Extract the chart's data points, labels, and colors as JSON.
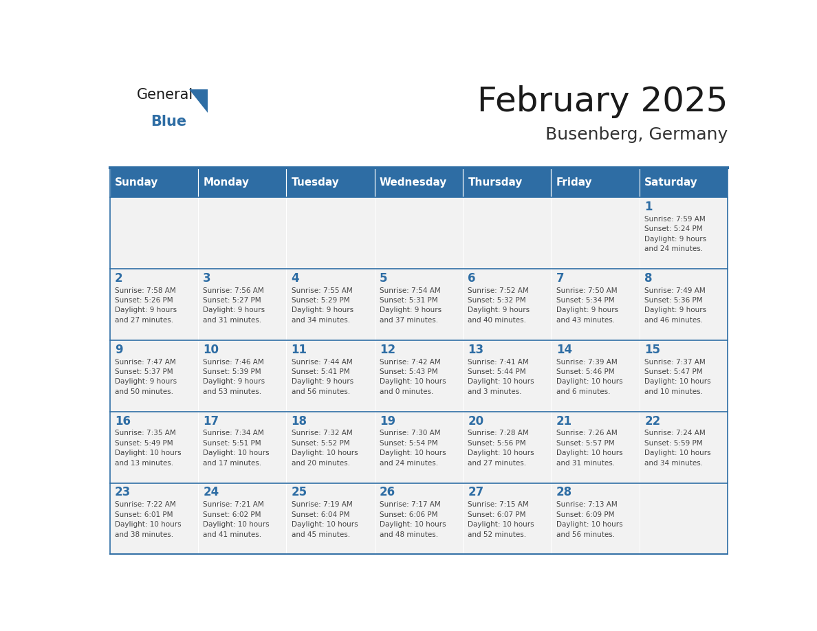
{
  "title": "February 2025",
  "subtitle": "Busenberg, Germany",
  "header_bg": "#2E6DA4",
  "header_text": "#FFFFFF",
  "cell_bg": "#F2F2F2",
  "day_number_color": "#2E6DA4",
  "info_text_color": "#444444",
  "logo_general_color": "#1a1a1a",
  "logo_blue_color": "#2E6DA4",
  "logo_triangle_color": "#2E6DA4",
  "days_of_week": [
    "Sunday",
    "Monday",
    "Tuesday",
    "Wednesday",
    "Thursday",
    "Friday",
    "Saturday"
  ],
  "calendar": [
    [
      {
        "day": null,
        "info": ""
      },
      {
        "day": null,
        "info": ""
      },
      {
        "day": null,
        "info": ""
      },
      {
        "day": null,
        "info": ""
      },
      {
        "day": null,
        "info": ""
      },
      {
        "day": null,
        "info": ""
      },
      {
        "day": 1,
        "info": "Sunrise: 7:59 AM\nSunset: 5:24 PM\nDaylight: 9 hours\nand 24 minutes."
      }
    ],
    [
      {
        "day": 2,
        "info": "Sunrise: 7:58 AM\nSunset: 5:26 PM\nDaylight: 9 hours\nand 27 minutes."
      },
      {
        "day": 3,
        "info": "Sunrise: 7:56 AM\nSunset: 5:27 PM\nDaylight: 9 hours\nand 31 minutes."
      },
      {
        "day": 4,
        "info": "Sunrise: 7:55 AM\nSunset: 5:29 PM\nDaylight: 9 hours\nand 34 minutes."
      },
      {
        "day": 5,
        "info": "Sunrise: 7:54 AM\nSunset: 5:31 PM\nDaylight: 9 hours\nand 37 minutes."
      },
      {
        "day": 6,
        "info": "Sunrise: 7:52 AM\nSunset: 5:32 PM\nDaylight: 9 hours\nand 40 minutes."
      },
      {
        "day": 7,
        "info": "Sunrise: 7:50 AM\nSunset: 5:34 PM\nDaylight: 9 hours\nand 43 minutes."
      },
      {
        "day": 8,
        "info": "Sunrise: 7:49 AM\nSunset: 5:36 PM\nDaylight: 9 hours\nand 46 minutes."
      }
    ],
    [
      {
        "day": 9,
        "info": "Sunrise: 7:47 AM\nSunset: 5:37 PM\nDaylight: 9 hours\nand 50 minutes."
      },
      {
        "day": 10,
        "info": "Sunrise: 7:46 AM\nSunset: 5:39 PM\nDaylight: 9 hours\nand 53 minutes."
      },
      {
        "day": 11,
        "info": "Sunrise: 7:44 AM\nSunset: 5:41 PM\nDaylight: 9 hours\nand 56 minutes."
      },
      {
        "day": 12,
        "info": "Sunrise: 7:42 AM\nSunset: 5:43 PM\nDaylight: 10 hours\nand 0 minutes."
      },
      {
        "day": 13,
        "info": "Sunrise: 7:41 AM\nSunset: 5:44 PM\nDaylight: 10 hours\nand 3 minutes."
      },
      {
        "day": 14,
        "info": "Sunrise: 7:39 AM\nSunset: 5:46 PM\nDaylight: 10 hours\nand 6 minutes."
      },
      {
        "day": 15,
        "info": "Sunrise: 7:37 AM\nSunset: 5:47 PM\nDaylight: 10 hours\nand 10 minutes."
      }
    ],
    [
      {
        "day": 16,
        "info": "Sunrise: 7:35 AM\nSunset: 5:49 PM\nDaylight: 10 hours\nand 13 minutes."
      },
      {
        "day": 17,
        "info": "Sunrise: 7:34 AM\nSunset: 5:51 PM\nDaylight: 10 hours\nand 17 minutes."
      },
      {
        "day": 18,
        "info": "Sunrise: 7:32 AM\nSunset: 5:52 PM\nDaylight: 10 hours\nand 20 minutes."
      },
      {
        "day": 19,
        "info": "Sunrise: 7:30 AM\nSunset: 5:54 PM\nDaylight: 10 hours\nand 24 minutes."
      },
      {
        "day": 20,
        "info": "Sunrise: 7:28 AM\nSunset: 5:56 PM\nDaylight: 10 hours\nand 27 minutes."
      },
      {
        "day": 21,
        "info": "Sunrise: 7:26 AM\nSunset: 5:57 PM\nDaylight: 10 hours\nand 31 minutes."
      },
      {
        "day": 22,
        "info": "Sunrise: 7:24 AM\nSunset: 5:59 PM\nDaylight: 10 hours\nand 34 minutes."
      }
    ],
    [
      {
        "day": 23,
        "info": "Sunrise: 7:22 AM\nSunset: 6:01 PM\nDaylight: 10 hours\nand 38 minutes."
      },
      {
        "day": 24,
        "info": "Sunrise: 7:21 AM\nSunset: 6:02 PM\nDaylight: 10 hours\nand 41 minutes."
      },
      {
        "day": 25,
        "info": "Sunrise: 7:19 AM\nSunset: 6:04 PM\nDaylight: 10 hours\nand 45 minutes."
      },
      {
        "day": 26,
        "info": "Sunrise: 7:17 AM\nSunset: 6:06 PM\nDaylight: 10 hours\nand 48 minutes."
      },
      {
        "day": 27,
        "info": "Sunrise: 7:15 AM\nSunset: 6:07 PM\nDaylight: 10 hours\nand 52 minutes."
      },
      {
        "day": 28,
        "info": "Sunrise: 7:13 AM\nSunset: 6:09 PM\nDaylight: 10 hours\nand 56 minutes."
      },
      {
        "day": null,
        "info": ""
      }
    ]
  ]
}
